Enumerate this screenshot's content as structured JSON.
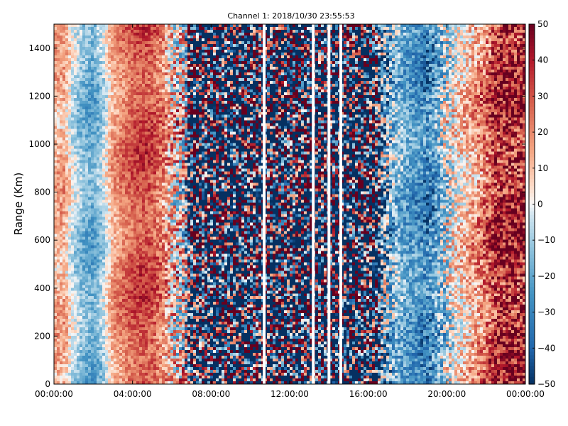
{
  "chart_data": {
    "type": "heatmap",
    "title": "Channel 1: 2018/10/30 23:55:53",
    "xlabel": "",
    "ylabel": "Range (Km)",
    "x_range_hours": [
      0,
      24
    ],
    "xlim": [
      "00:00:00",
      "00:00:00"
    ],
    "x_tick_labels": [
      "00:00:00",
      "04:00:00",
      "08:00:00",
      "12:00:00",
      "16:00:00",
      "20:00:00",
      "00:00:00"
    ],
    "ylim": [
      0,
      1500
    ],
    "y_ticks": [
      0,
      200,
      400,
      600,
      800,
      1000,
      1200,
      1400
    ],
    "color_range": [
      -50,
      50
    ],
    "colorbar_ticks": [
      50,
      40,
      30,
      20,
      10,
      0,
      -10,
      -20,
      -30,
      -40,
      -50
    ],
    "colormap": "red-white-blue (RdBu reversed)",
    "grid": false,
    "colorbar_placement": "right",
    "profile": {
      "hours": [
        0,
        0.5,
        1.0,
        1.5,
        2.0,
        2.5,
        3.0,
        3.5,
        4.0,
        4.5,
        5.0,
        5.5,
        6.0,
        6.5,
        7.0,
        8.0,
        9.0,
        10.0,
        11.0,
        12.0,
        13.0,
        14.0,
        15.0,
        16.0,
        16.5,
        17.0,
        17.5,
        18.0,
        18.5,
        19.0,
        19.5,
        20.0,
        20.5,
        21.0,
        21.5,
        22.0,
        22.5,
        23.0,
        23.5,
        24.0
      ],
      "value": [
        12,
        14,
        -5,
        -15,
        -20,
        -8,
        15,
        22,
        28,
        32,
        30,
        22,
        10,
        5,
        -20,
        -25,
        -25,
        -25,
        -25,
        -25,
        -25,
        -25,
        -25,
        -25,
        -28,
        -18,
        -14,
        -22,
        -25,
        -30,
        -20,
        -5,
        5,
        10,
        18,
        25,
        35,
        38,
        40,
        40
      ],
      "noise": [
        12,
        12,
        10,
        10,
        10,
        10,
        10,
        10,
        10,
        10,
        12,
        14,
        30,
        40,
        60,
        70,
        70,
        70,
        70,
        70,
        70,
        70,
        70,
        70,
        55,
        35,
        18,
        15,
        15,
        20,
        22,
        30,
        18,
        16,
        18,
        20,
        22,
        24,
        26,
        28
      ]
    },
    "blank_columns_hours": [
      10.7,
      13.2,
      14.0,
      14.6
    ]
  }
}
